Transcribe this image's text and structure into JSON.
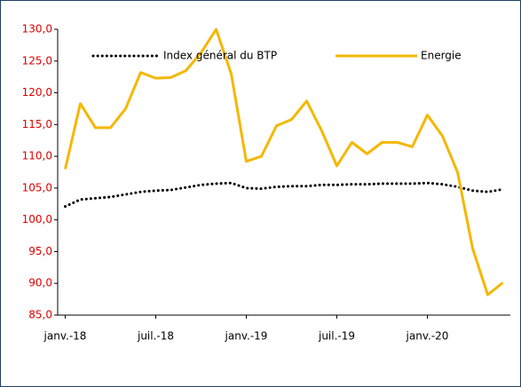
{
  "chart_data": {
    "type": "line",
    "categories": [
      "janv.-18",
      null,
      null,
      null,
      null,
      null,
      "juil.-18",
      null,
      null,
      null,
      null,
      null,
      "janv.-19",
      null,
      null,
      null,
      null,
      null,
      "juil.-19",
      null,
      null,
      null,
      null,
      null,
      "janv.-20",
      null,
      null,
      null,
      null,
      null
    ],
    "series": [
      {
        "name": "Index général du BTP",
        "color": "#000000",
        "dash": "dotted",
        "values": [
          102.1,
          103.2,
          103.4,
          103.6,
          104.0,
          104.4,
          104.6,
          104.7,
          105.1,
          105.5,
          105.7,
          105.8,
          105.0,
          104.9,
          105.2,
          105.3,
          105.3,
          105.5,
          105.5,
          105.6,
          105.6,
          105.7,
          105.7,
          105.7,
          105.8,
          105.6,
          105.2,
          104.6,
          104.4,
          104.8
        ]
      },
      {
        "name": "Energie",
        "color": "#f5b700",
        "dash": "solid",
        "values": [
          108.0,
          118.3,
          114.5,
          114.5,
          117.5,
          123.2,
          122.3,
          122.4,
          123.5,
          126.3,
          130.0,
          123.0,
          109.2,
          110.0,
          114.8,
          115.8,
          118.7,
          114.0,
          108.5,
          112.2,
          110.4,
          112.2,
          112.2,
          111.5,
          116.5,
          113.2,
          107.5,
          95.5,
          88.2,
          90.1
        ]
      }
    ],
    "ylim": [
      85,
      130
    ],
    "yticks": [
      {
        "value": 85,
        "label": "85,0"
      },
      {
        "value": 90,
        "label": "90,0"
      },
      {
        "value": 95,
        "label": "95,0"
      },
      {
        "value": 100,
        "label": "100,0"
      },
      {
        "value": 105,
        "label": "105,0"
      },
      {
        "value": 110,
        "label": "110,0"
      },
      {
        "value": 115,
        "label": "115,0"
      },
      {
        "value": 120,
        "label": "120,0"
      },
      {
        "value": 125,
        "label": "125,0"
      },
      {
        "value": 130,
        "label": "130,0"
      }
    ],
    "tick_label_color": "#e00000",
    "legend": "top"
  }
}
